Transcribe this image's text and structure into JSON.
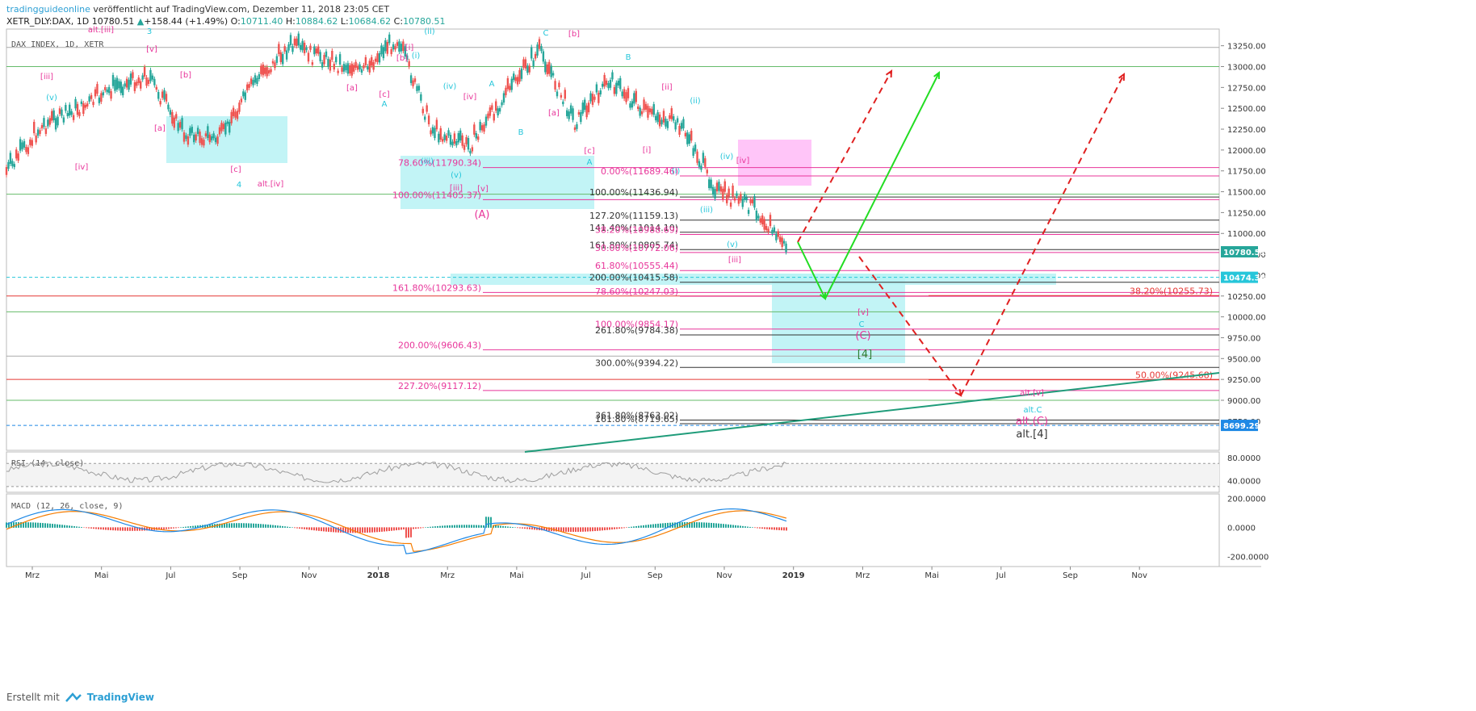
{
  "header": {
    "author": "tradingguideonline",
    "published_text": "veröffentlicht auf TradingView.com, Dezember 11, 2018 23:05 CET",
    "symbol": "XETR_DLY:DAX, 1D",
    "last": "10780.51",
    "change": "+158.44 (+1.49%)",
    "open_label": "O:",
    "open": "10711.40",
    "high_label": "H:",
    "high": "10884.62",
    "low_label": "L:",
    "low": "10684.62",
    "close_label": "C:",
    "close": "10780.51"
  },
  "footer": {
    "created_with": "Erstellt mit",
    "brand": "TradingView"
  },
  "colors": {
    "up": "#26a69a",
    "down": "#ef5350",
    "fib_pink": "#e8359a",
    "teal_box": "#b7f2f5",
    "magenta_box": "#ff9ff3",
    "arrow_green": "#22dd22",
    "arrow_red": "#e02020"
  },
  "chart_data": [
    {
      "type": "line",
      "title": "DAX INDEX, 1D, XETR",
      "ylim": [
        8400,
        13450
      ],
      "y_ticks": [
        "13250.00",
        "13000.00",
        "12750.00",
        "12500.00",
        "12250.00",
        "12000.00",
        "11750.00",
        "11500.00",
        "11250.00",
        "11000.00",
        "10750.00",
        "10500.00",
        "10250.00",
        "10000.00",
        "9750.00",
        "9500.00",
        "9250.00",
        "9000.00",
        "8750.00"
      ],
      "x_ticks": [
        "Mrz",
        "Mai",
        "Jul",
        "Sep",
        "Nov",
        "2018",
        "Mrz",
        "Mai",
        "Jul",
        "Sep",
        "Nov",
        "2019",
        "Mrz",
        "Mai",
        "Jul",
        "Sep",
        "Nov"
      ],
      "series": [
        {
          "x": [
            "2017-02",
            "2017-03",
            "2017-04",
            "2017-05",
            "2017-06",
            "2017-07",
            "2017-08",
            "2017-09",
            "2017-10",
            "2017-11",
            "2017-12",
            "2018-01",
            "2018-02",
            "2018-03",
            "2018-04",
            "2018-05",
            "2018-06",
            "2018-07",
            "2018-08",
            "2018-09",
            "2018-10",
            "2018-11",
            "2018-12"
          ],
          "values": [
            11700,
            12250,
            12450,
            12700,
            12850,
            12150,
            12100,
            12800,
            13200,
            13050,
            12900,
            13300,
            12200,
            12000,
            12600,
            13150,
            12300,
            12800,
            12400,
            12250,
            11450,
            11300,
            10780
          ]
        }
      ],
      "price_tags": [
        "10780.51",
        "10474.38",
        "8699.29"
      ],
      "fib_levels_left": [
        {
          "text": "78.60%(11790.34)",
          "value": 11790
        },
        {
          "text": "100.00%(11405.37)",
          "value": 11405
        },
        {
          "text": "161.80%(10293.63)",
          "value": 10293
        },
        {
          "text": "200.00%(9606.43)",
          "value": 9606
        },
        {
          "text": "227.20%(9117.12)",
          "value": 9117
        }
      ],
      "fib_levels_mid": [
        {
          "text": "0.00%(11689.46)",
          "value": 11689
        },
        {
          "text": "100.00%(11436.94)",
          "value": 11437
        },
        {
          "text": "127.20%(11159.13)",
          "value": 11159
        },
        {
          "text": "141.40%(11014.10)",
          "value": 11014
        },
        {
          "text": "38.20%(10988.69)",
          "value": 10988
        },
        {
          "text": "161.80%(10805.74)",
          "value": 10806
        },
        {
          "text": "50.00%(10772.06)",
          "value": 10772
        },
        {
          "text": "61.80%(10555.44)",
          "value": 10555
        },
        {
          "text": "200.00%(10415.58)",
          "value": 10415
        },
        {
          "text": "78.60%(10247.03)",
          "value": 10247
        },
        {
          "text": "100.00%(9854.17)",
          "value": 9854
        },
        {
          "text": "261.80%(9784.38)",
          "value": 9784
        },
        {
          "text": "300.00%(9394.22)",
          "value": 9394
        },
        {
          "text": "361.80%(8763.02)",
          "value": 8763
        },
        {
          "text": "161.80%(8719.65)",
          "value": 8719
        }
      ],
      "fib_levels_right": [
        {
          "text": "38.20%(10255.73)",
          "value": 10255
        },
        {
          "text": "50.00%(9245.68)",
          "value": 9245
        }
      ],
      "wave_labels": [
        "alt.[iii]",
        "3",
        "[v]",
        "[iii]",
        "(v)",
        "[b]",
        "[a]",
        "[iv]",
        "[c]",
        "4",
        "alt.[iv]",
        "[b]",
        "[i]",
        "(i)",
        "(ii)",
        "[a]",
        "[c]",
        "A",
        "(iii)",
        "(v)",
        "[iii]",
        "[v]",
        "(iv)",
        "A",
        "[iv]",
        "B",
        "(A)",
        "C",
        "[b]",
        "[a]",
        "B",
        "[c]",
        "A",
        "[ii]",
        "[i]",
        "(i)",
        "(ii)",
        "(iii)",
        "(iv)",
        "[iv]",
        "(v)",
        "[iii]",
        "[v]",
        "C",
        "(C)",
        "[4]",
        "alt.[v]",
        "alt.C",
        "alt.(C)",
        "alt.[4]"
      ]
    },
    {
      "type": "line",
      "title": "RSI (14, close)",
      "y_ticks": [
        "80.0000",
        "40.0000"
      ],
      "ylim": [
        20,
        90
      ]
    },
    {
      "type": "bar",
      "title": "MACD (12, 26, close, 9)",
      "y_ticks": [
        "200.0000",
        "0.0000",
        "-200.0000"
      ],
      "ylim": [
        -270,
        230
      ]
    }
  ]
}
